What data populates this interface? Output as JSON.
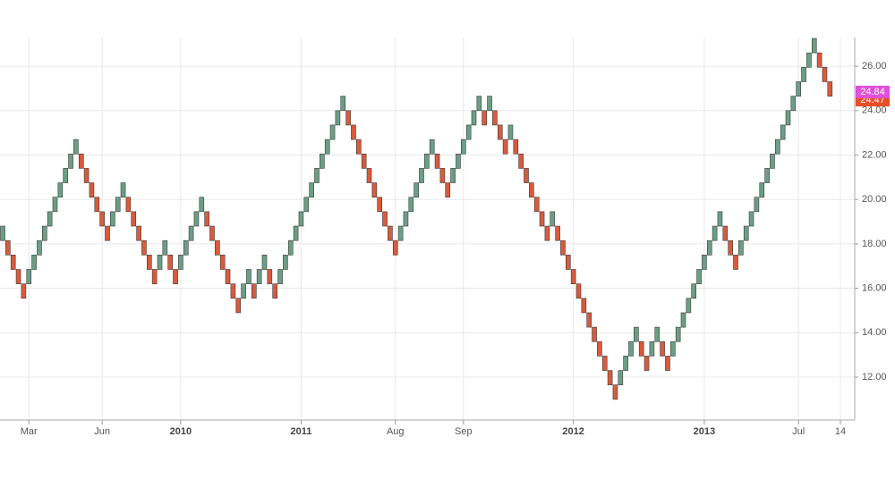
{
  "chart_data": {
    "type": "renko",
    "up_color": "#6b9e87",
    "down_color": "#d95a3c",
    "grid": true,
    "ylim": [
      10.07,
      27.29
    ],
    "yticks": [
      {
        "value": 12,
        "label": "12.00"
      },
      {
        "value": 14,
        "label": "14.00"
      },
      {
        "value": 16,
        "label": "16.00"
      },
      {
        "value": 18,
        "label": "18.00"
      },
      {
        "value": 20,
        "label": "20.00"
      },
      {
        "value": 22,
        "label": "22.00"
      },
      {
        "value": 24,
        "label": "24.00"
      },
      {
        "value": 26,
        "label": "26.00"
      }
    ],
    "price_labels": [
      {
        "value": 24.47,
        "color": "#e8502a"
      },
      {
        "value": 24.84,
        "color": "#e050d8"
      }
    ],
    "bricks": [
      [
        18.15,
        18.8
      ],
      [
        18.15,
        17.5
      ],
      [
        17.5,
        16.85
      ],
      [
        16.85,
        16.2
      ],
      [
        16.2,
        15.55
      ],
      [
        16.2,
        16.85
      ],
      [
        16.85,
        17.5
      ],
      [
        17.5,
        18.15
      ],
      [
        18.15,
        18.8
      ],
      [
        18.8,
        19.45
      ],
      [
        19.45,
        20.1
      ],
      [
        20.1,
        20.75
      ],
      [
        20.75,
        21.4
      ],
      [
        21.4,
        22.05
      ],
      [
        22.05,
        22.7
      ],
      [
        22.05,
        21.4
      ],
      [
        21.4,
        20.75
      ],
      [
        20.75,
        20.1
      ],
      [
        20.1,
        19.45
      ],
      [
        19.45,
        18.8
      ],
      [
        18.8,
        18.15
      ],
      [
        18.8,
        19.45
      ],
      [
        19.45,
        20.1
      ],
      [
        20.1,
        20.75
      ],
      [
        20.1,
        19.45
      ],
      [
        19.45,
        18.8
      ],
      [
        18.8,
        18.15
      ],
      [
        18.15,
        17.5
      ],
      [
        17.5,
        16.85
      ],
      [
        16.85,
        16.2
      ],
      [
        16.85,
        17.5
      ],
      [
        17.5,
        18.15
      ],
      [
        17.5,
        16.85
      ],
      [
        16.85,
        16.2
      ],
      [
        16.85,
        17.5
      ],
      [
        17.5,
        18.15
      ],
      [
        18.15,
        18.8
      ],
      [
        18.8,
        19.45
      ],
      [
        19.45,
        20.1
      ],
      [
        19.45,
        18.8
      ],
      [
        18.8,
        18.15
      ],
      [
        18.15,
        17.5
      ],
      [
        17.5,
        16.85
      ],
      [
        16.85,
        16.2
      ],
      [
        16.2,
        15.55
      ],
      [
        15.55,
        14.9
      ],
      [
        15.55,
        16.2
      ],
      [
        16.2,
        16.85
      ],
      [
        16.2,
        15.55
      ],
      [
        16.2,
        16.85
      ],
      [
        16.85,
        17.5
      ],
      [
        16.85,
        16.2
      ],
      [
        16.2,
        15.55
      ],
      [
        16.2,
        16.85
      ],
      [
        16.85,
        17.5
      ],
      [
        17.5,
        18.15
      ],
      [
        18.15,
        18.8
      ],
      [
        18.8,
        19.45
      ],
      [
        19.45,
        20.1
      ],
      [
        20.1,
        20.75
      ],
      [
        20.75,
        21.4
      ],
      [
        21.4,
        22.05
      ],
      [
        22.05,
        22.7
      ],
      [
        22.7,
        23.35
      ],
      [
        23.35,
        24
      ],
      [
        24,
        24.65
      ],
      [
        24,
        23.35
      ],
      [
        23.35,
        22.7
      ],
      [
        22.7,
        22.05
      ],
      [
        22.05,
        21.4
      ],
      [
        21.4,
        20.75
      ],
      [
        20.75,
        20.1
      ],
      [
        20.1,
        19.45
      ],
      [
        19.45,
        18.8
      ],
      [
        18.8,
        18.15
      ],
      [
        18.15,
        17.5
      ],
      [
        18.15,
        18.8
      ],
      [
        18.8,
        19.45
      ],
      [
        19.45,
        20.1
      ],
      [
        20.1,
        20.75
      ],
      [
        20.75,
        21.4
      ],
      [
        21.4,
        22.05
      ],
      [
        22.05,
        22.7
      ],
      [
        22.05,
        21.4
      ],
      [
        21.4,
        20.75
      ],
      [
        20.75,
        20.1
      ],
      [
        20.75,
        21.4
      ],
      [
        21.4,
        22.05
      ],
      [
        22.05,
        22.7
      ],
      [
        22.7,
        23.35
      ],
      [
        23.35,
        24
      ],
      [
        24,
        24.65
      ],
      [
        24,
        23.35
      ],
      [
        24,
        24.65
      ],
      [
        24,
        23.35
      ],
      [
        23.35,
        22.7
      ],
      [
        22.7,
        22.05
      ],
      [
        22.7,
        23.35
      ],
      [
        22.7,
        22.05
      ],
      [
        22.05,
        21.4
      ],
      [
        21.4,
        20.75
      ],
      [
        20.75,
        20.1
      ],
      [
        20.1,
        19.45
      ],
      [
        19.45,
        18.8
      ],
      [
        18.8,
        18.15
      ],
      [
        18.8,
        19.45
      ],
      [
        18.8,
        18.15
      ],
      [
        18.15,
        17.5
      ],
      [
        17.5,
        16.85
      ],
      [
        16.85,
        16.2
      ],
      [
        16.2,
        15.55
      ],
      [
        15.55,
        14.9
      ],
      [
        14.9,
        14.25
      ],
      [
        14.25,
        13.6
      ],
      [
        13.6,
        12.95
      ],
      [
        12.95,
        12.3
      ],
      [
        12.3,
        11.65
      ],
      [
        11.65,
        11
      ],
      [
        11.65,
        12.3
      ],
      [
        12.3,
        12.95
      ],
      [
        12.95,
        13.6
      ],
      [
        13.6,
        14.25
      ],
      [
        13.6,
        12.95
      ],
      [
        12.95,
        12.3
      ],
      [
        12.95,
        13.6
      ],
      [
        13.6,
        14.25
      ],
      [
        13.6,
        12.95
      ],
      [
        12.95,
        12.3
      ],
      [
        12.95,
        13.6
      ],
      [
        13.6,
        14.25
      ],
      [
        14.25,
        14.9
      ],
      [
        14.9,
        15.55
      ],
      [
        15.55,
        16.2
      ],
      [
        16.2,
        16.85
      ],
      [
        16.85,
        17.5
      ],
      [
        17.5,
        18.15
      ],
      [
        18.15,
        18.8
      ],
      [
        18.8,
        19.45
      ],
      [
        18.8,
        18.15
      ],
      [
        18.15,
        17.5
      ],
      [
        17.5,
        16.85
      ],
      [
        17.5,
        18.15
      ],
      [
        18.15,
        18.8
      ],
      [
        18.8,
        19.45
      ],
      [
        19.45,
        20.1
      ],
      [
        20.1,
        20.75
      ],
      [
        20.75,
        21.4
      ],
      [
        21.4,
        22.05
      ],
      [
        22.05,
        22.7
      ],
      [
        22.7,
        23.35
      ],
      [
        23.35,
        24
      ],
      [
        24,
        24.65
      ],
      [
        24.65,
        25.3
      ],
      [
        25.3,
        25.95
      ],
      [
        25.95,
        26.6
      ],
      [
        26.6,
        27.25
      ],
      [
        26.6,
        25.95
      ],
      [
        25.95,
        25.3
      ],
      [
        25.3,
        24.65
      ]
    ],
    "categories": [
      null,
      null,
      null,
      null,
      null,
      "Mar",
      null,
      null,
      null,
      null,
      null,
      null,
      null,
      null,
      null,
      null,
      null,
      null,
      null,
      "Jun",
      null,
      null,
      null,
      null,
      null,
      null,
      null,
      null,
      null,
      null,
      null,
      null,
      null,
      null,
      "2010",
      null,
      null,
      null,
      null,
      null,
      null,
      null,
      null,
      null,
      null,
      null,
      null,
      null,
      null,
      null,
      null,
      null,
      null,
      null,
      null,
      null,
      null,
      "2011",
      null,
      null,
      null,
      null,
      null,
      null,
      null,
      null,
      null,
      null,
      null,
      null,
      null,
      null,
      null,
      null,
      null,
      "Aug",
      null,
      null,
      null,
      null,
      null,
      null,
      null,
      null,
      null,
      null,
      null,
      null,
      "Sep",
      null,
      null,
      null,
      null,
      null,
      null,
      null,
      null,
      null,
      null,
      null,
      null,
      null,
      null,
      null,
      null,
      null,
      null,
      null,
      null,
      "2012",
      null,
      null,
      null,
      null,
      null,
      null,
      null,
      null,
      null,
      null,
      null,
      null,
      null,
      null,
      null,
      null,
      null,
      null,
      null,
      null,
      null,
      null,
      null,
      null,
      "2013",
      null,
      null,
      null,
      null,
      null,
      null,
      null,
      null,
      null,
      null,
      null,
      null,
      null,
      null,
      null,
      null,
      null,
      "Jul",
      null,
      null,
      null,
      null,
      null,
      null,
      null,
      "14"
    ]
  }
}
